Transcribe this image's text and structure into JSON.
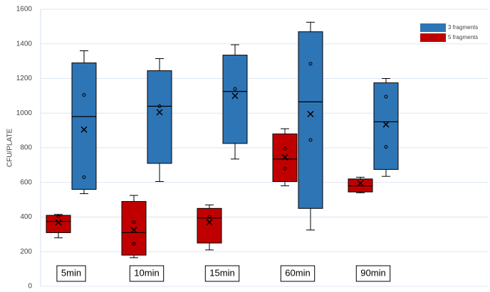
{
  "chart_data": {
    "type": "box",
    "y_label": "CFU/PLATE",
    "categories": [
      "5min",
      "10min",
      "15min",
      "60min",
      "90min"
    ],
    "ylim": [
      0,
      1600
    ],
    "yticks": [
      0,
      200,
      400,
      600,
      800,
      1000,
      1200,
      1400,
      1600
    ],
    "grid": true,
    "legend": "top-right",
    "series": [
      {
        "name": "3 fragments",
        "color": "#2e75b6",
        "boxes": [
          {
            "min": 535,
            "q1": 560,
            "median": 980,
            "q3": 1290,
            "max": 1360,
            "mean": 905,
            "points": [
              1105,
              630
            ]
          },
          {
            "min": 605,
            "q1": 710,
            "median": 1040,
            "q3": 1245,
            "max": 1315,
            "mean": 1005,
            "points": [
              1040
            ]
          },
          {
            "min": 735,
            "q1": 825,
            "median": 1125,
            "q3": 1335,
            "max": 1395,
            "mean": 1100,
            "points": [
              1140
            ]
          },
          {
            "min": 325,
            "q1": 450,
            "median": 1065,
            "q3": 1470,
            "max": 1525,
            "mean": 995,
            "points": [
              1285,
              845
            ]
          },
          {
            "min": 635,
            "q1": 675,
            "median": 950,
            "q3": 1175,
            "max": 1200,
            "mean": 935,
            "points": [
              1095,
              805
            ]
          }
        ]
      },
      {
        "name": "5 fragments",
        "color": "#c00000",
        "boxes": [
          {
            "min": 280,
            "q1": 310,
            "median": 375,
            "q3": 410,
            "max": 415,
            "mean": 370,
            "points": [
              405
            ]
          },
          {
            "min": 165,
            "q1": 180,
            "median": 310,
            "q3": 490,
            "max": 525,
            "mean": 325,
            "points": [
              370,
              245
            ]
          },
          {
            "min": 210,
            "q1": 250,
            "median": 395,
            "q3": 450,
            "max": 470,
            "mean": 370,
            "points": [
              400
            ]
          },
          {
            "min": 580,
            "q1": 605,
            "median": 735,
            "q3": 880,
            "max": 910,
            "mean": 745,
            "points": [
              795,
              680
            ]
          },
          {
            "min": 540,
            "q1": 545,
            "median": 580,
            "q3": 620,
            "max": 630,
            "mean": 595,
            "points": []
          }
        ]
      }
    ]
  }
}
